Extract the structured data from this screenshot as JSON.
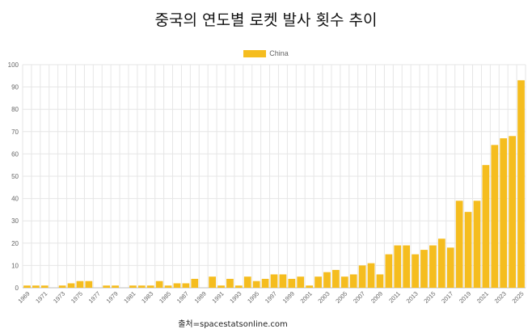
{
  "title": "중국의 연도별 로켓 발사 횟수 추이",
  "source": "출처=spacestatsonline.com",
  "colors": {
    "bar": "#f5bd1f",
    "grid": "#e6e6e6",
    "axis": "#bdbdbd"
  },
  "chart_data": {
    "type": "bar",
    "title": "중국의 연도별 로켓 발사 횟수 추이",
    "legend_position": "top",
    "grid": true,
    "ylim": [
      0,
      100
    ],
    "yticks": [
      0,
      10,
      20,
      30,
      40,
      50,
      60,
      70,
      80,
      90,
      100
    ],
    "categories": [
      "1969",
      "1970",
      "1971",
      "1972",
      "1973",
      "1974",
      "1975",
      "1976",
      "1977",
      "1978",
      "1979",
      "1980",
      "1981",
      "1982",
      "1983",
      "1984",
      "1985",
      "1986",
      "1987",
      "1988",
      "1989",
      "1990",
      "1991",
      "1992",
      "1993",
      "1994",
      "1995",
      "1996",
      "1997",
      "1998",
      "1999",
      "2000",
      "2001",
      "2002",
      "2003",
      "2004",
      "2005",
      "2006",
      "2007",
      "2008",
      "2009",
      "2010",
      "2011",
      "2012",
      "2013",
      "2014",
      "2015",
      "2016",
      "2017",
      "2018",
      "2019",
      "2020",
      "2021",
      "2022",
      "2023",
      "2024",
      "2025"
    ],
    "xtick_labels": [
      "1969",
      "1971",
      "1973",
      "1975",
      "1977",
      "1979",
      "1981",
      "1983",
      "1985",
      "1987",
      "1989",
      "1991",
      "1993",
      "1995",
      "1997",
      "1999",
      "2001",
      "2003",
      "2005",
      "2007",
      "2009",
      "2011",
      "2013",
      "2015",
      "2017",
      "2019",
      "2021",
      "2023",
      "2025"
    ],
    "series": [
      {
        "name": "China",
        "values": [
          1,
          1,
          1,
          0,
          1,
          2,
          3,
          3,
          0,
          1,
          1,
          0,
          1,
          1,
          1,
          3,
          1,
          2,
          2,
          4,
          0,
          5,
          1,
          4,
          1,
          5,
          3,
          4,
          6,
          6,
          4,
          5,
          1,
          5,
          7,
          8,
          5,
          6,
          10,
          11,
          6,
          15,
          19,
          19,
          15,
          17,
          19,
          22,
          18,
          39,
          34,
          39,
          55,
          64,
          67,
          68,
          93
        ]
      }
    ]
  }
}
